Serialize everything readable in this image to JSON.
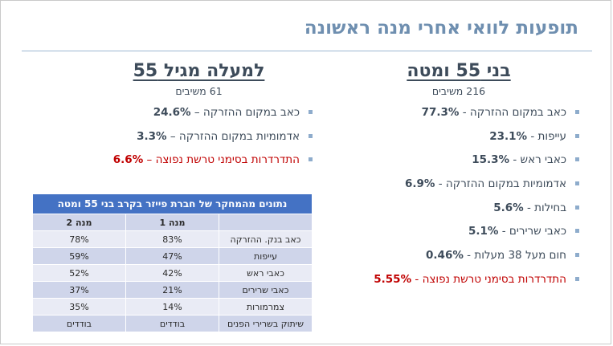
{
  "title": "תופעות לוואי אחרי מנה ראשונה",
  "right_column": {
    "heading": "בני 55 ומטה",
    "respondents": "216 משיבים",
    "items": [
      {
        "label": "כאב במקום ההזרקה - ",
        "value": "77.3%",
        "highlight": false
      },
      {
        "label": "עייפות - ",
        "value": "23.1%",
        "highlight": false
      },
      {
        "label": "כאבי ראש - ",
        "value": "15.3%",
        "highlight": false
      },
      {
        "label": "אדמומיות במקום ההזרקה - ",
        "value": "6.9%",
        "highlight": false
      },
      {
        "label": "בחילות - ",
        "value": "5.6%",
        "highlight": false
      },
      {
        "label": "כאבי שרירים - ",
        "value": "5.1%",
        "highlight": false
      },
      {
        "label": "חום מעל 38 מעלות - ",
        "value": "0.46%",
        "highlight": false
      },
      {
        "label": "התדרדרות בסימני טרשת נפוצה - ",
        "value": "5.55%",
        "highlight": true
      }
    ]
  },
  "left_column": {
    "heading": "למעלה מגיל 55",
    "respondents": "61 משיבים",
    "items": [
      {
        "label": "כאב במקום ההזרקה – ",
        "value": "24.6%",
        "highlight": false
      },
      {
        "label": "אדמומיות במקום ההזרקה – ",
        "value": "3.3%",
        "highlight": false
      },
      {
        "label": "התדרדרות בסימני טרשת נפוצה – ",
        "value": "6.6%",
        "highlight": true
      }
    ]
  },
  "table": {
    "caption": "נתונים מהמחקר של חברת פייזר בקרב בני 55 ומטה",
    "headers": [
      "",
      "מנה 1",
      "מנה 2"
    ],
    "rows": [
      [
        "כאב בנק. ההזרקה",
        "83%",
        "78%"
      ],
      [
        "עייפות",
        "47%",
        "59%"
      ],
      [
        "כאבי ראש",
        "42%",
        "52%"
      ],
      [
        "כאבי שרירים",
        "21%",
        "37%"
      ],
      [
        "צמרמורות",
        "14%",
        "35%"
      ],
      [
        "שיתוק בשרירי הפנים",
        "בודדים",
        "בודדים"
      ]
    ]
  },
  "colors": {
    "title": "#6f8fb0",
    "heading": "#3d4b5a",
    "highlight": "#c00000",
    "bullet": "#8eaccc",
    "table_header": "#4472c4",
    "table_row_dark": "#cfd5ea",
    "table_row_light": "#e9ebf5"
  }
}
